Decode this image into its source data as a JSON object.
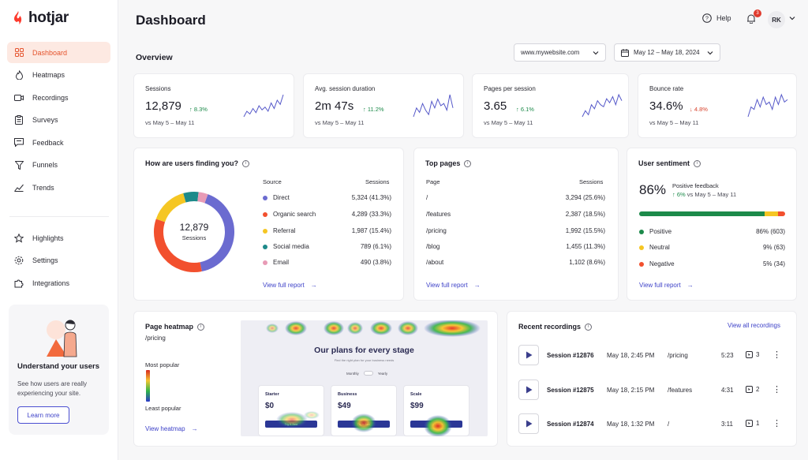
{
  "brand": {
    "name": "hotjar",
    "accent": "#fd3a2d",
    "primary": "#3e42c8"
  },
  "sidebar": {
    "items": [
      {
        "label": "Dashboard",
        "icon": "grid-icon",
        "active": true
      },
      {
        "label": "Heatmaps",
        "icon": "flame-icon"
      },
      {
        "label": "Recordings",
        "icon": "video-icon"
      },
      {
        "label": "Surveys",
        "icon": "clipboard-icon"
      },
      {
        "label": "Feedback",
        "icon": "chat-icon"
      },
      {
        "label": "Funnels",
        "icon": "funnel-icon"
      },
      {
        "label": "Trends",
        "icon": "trend-icon"
      }
    ],
    "secondary": [
      {
        "label": "Highlights",
        "icon": "star-icon"
      },
      {
        "label": "Settings",
        "icon": "gear-icon"
      },
      {
        "label": "Integrations",
        "icon": "puzzle-icon"
      }
    ],
    "promo": {
      "title": "Understand your users",
      "text": "See how users are really experiencing your site.",
      "button": "Learn more"
    }
  },
  "header": {
    "title": "Dashboard",
    "help": "Help",
    "notifications": "3",
    "avatar": "RK"
  },
  "overview": {
    "title": "Overview",
    "site": "www.mywebsite.com",
    "date_range": "May 12 – May 18, 2024"
  },
  "stats": [
    {
      "label": "Sessions",
      "value": "12,879",
      "change": "8.3%",
      "dir": "up",
      "compare": "vs May 5 – May 11",
      "spark": [
        6,
        10,
        8,
        12,
        9,
        14,
        11,
        13,
        10,
        16,
        12,
        18,
        15,
        22
      ]
    },
    {
      "label": "Avg. session duration",
      "value": "2m 47s",
      "change": "11.2%",
      "dir": "up",
      "compare": "vs May 5 – May 11",
      "spark": [
        8,
        12,
        10,
        14,
        11,
        9,
        15,
        12,
        16,
        13,
        14,
        11,
        18,
        12
      ]
    },
    {
      "label": "Pages per session",
      "value": "3.65",
      "change": "6.1%",
      "dir": "up",
      "compare": "vs May 5 – May 11",
      "spark": [
        6,
        9,
        7,
        12,
        10,
        14,
        12,
        11,
        15,
        13,
        16,
        12,
        17,
        14
      ]
    },
    {
      "label": "Bounce rate",
      "value": "34.6%",
      "change": "4.8%",
      "dir": "down",
      "compare": "vs May 5 – May 11",
      "spark": [
        6,
        10,
        9,
        13,
        10,
        14,
        11,
        12,
        9,
        14,
        11,
        15,
        12,
        13
      ]
    }
  ],
  "sources": {
    "title": "How are users finding you?",
    "col_source": "Source",
    "col_sessions": "Sessions",
    "center_value": "12,879",
    "center_label": "Sessions",
    "link": "View full report",
    "rows": [
      {
        "name": "Direct",
        "value": "5,324 (41.3%)",
        "pct": 41.3,
        "color": "#6b6bd0"
      },
      {
        "name": "Organic search",
        "value": "4,289 (33.3%)",
        "pct": 33.3,
        "color": "#f2502e"
      },
      {
        "name": "Referral",
        "value": "1,987 (15.4%)",
        "pct": 15.4,
        "color": "#f5c623"
      },
      {
        "name": "Social media",
        "value": "789 (6.1%)",
        "pct": 6.1,
        "color": "#1d8a8a"
      },
      {
        "name": "Email",
        "value": "490 (3.8%)",
        "pct": 3.8,
        "color": "#e89bb6"
      }
    ]
  },
  "top_pages": {
    "title": "Top pages",
    "col_page": "Page",
    "col_sessions": "Sessions",
    "link": "View full report",
    "rows": [
      {
        "page": "/",
        "value": "3,294 (25.6%)"
      },
      {
        "page": "/features",
        "value": "2,387 (18.5%)"
      },
      {
        "page": "/pricing",
        "value": "1,992 (15.5%)"
      },
      {
        "page": "/blog",
        "value": "1,455 (11.3%)"
      },
      {
        "page": "/about",
        "value": "1,102 (8.6%)"
      }
    ]
  },
  "sentiment": {
    "title": "User sentiment",
    "value": "86%",
    "label": "Positive feedback",
    "change": "6%",
    "compare": "vs May 5 – May 11",
    "link": "View full report",
    "bar": [
      {
        "pct": 86,
        "color": "#1c8a4a"
      },
      {
        "pct": 9,
        "color": "#f5c623"
      },
      {
        "pct": 5,
        "color": "#f2502e"
      }
    ],
    "rows": [
      {
        "name": "Positive",
        "value": "86% (603)",
        "color": "#1c8a4a"
      },
      {
        "name": "Neutral",
        "value": "9% (63)",
        "color": "#f5c623"
      },
      {
        "name": "Negative",
        "value": "5% (34)",
        "color": "#f2502e"
      }
    ]
  },
  "heatmap": {
    "title": "Page heatmap",
    "path": "/pricing",
    "most": "Most popular",
    "least": "Least popular",
    "link": "View heatmap",
    "preview": {
      "title": "Our plans for every stage",
      "subtitle": "Find the right plan for your business needs",
      "monthly": "Monthly",
      "yearly": "Yearly",
      "plans": [
        {
          "name": "Starter",
          "price": "$0",
          "button": "Try it free"
        },
        {
          "name": "Business",
          "price": "$49",
          "button": "Try it free"
        },
        {
          "name": "Scale",
          "price": "$99",
          "button": "Try it free"
        }
      ]
    }
  },
  "recordings": {
    "title": "Recent recordings",
    "link": "View all recordings",
    "rows": [
      {
        "id": "Session #12876",
        "date": "May 18, 2:45 PM",
        "path": "/pricing",
        "duration": "5:23",
        "clicks": "3"
      },
      {
        "id": "Session #12875",
        "date": "May 18, 2:15 PM",
        "path": "/features",
        "duration": "4:31",
        "clicks": "2"
      },
      {
        "id": "Session #12874",
        "date": "May 18, 1:32 PM",
        "path": "/",
        "duration": "3:11",
        "clicks": "1"
      }
    ]
  }
}
